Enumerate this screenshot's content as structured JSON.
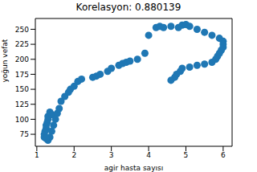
{
  "chart_data": {
    "type": "scatter",
    "title": "Korelasyon: 0.880139",
    "x_label": "agir hasta sayısı",
    "y_label": "yoğun vefat",
    "color": "#1f77b4",
    "marker": "circle",
    "grid": false,
    "xlim": [
      0.96,
      6.24
    ],
    "ylim": [
      55,
      268
    ],
    "xticks": [
      1,
      2,
      3,
      4,
      5,
      6
    ],
    "yticks": [
      75,
      100,
      125,
      150,
      175,
      200,
      225,
      250
    ],
    "x": [
      1.2,
      1.2,
      1.22,
      1.25,
      1.25,
      1.28,
      1.3,
      1.3,
      1.35,
      1.4,
      1.5,
      1.45,
      1.4,
      1.35,
      1.3,
      1.25,
      1.55,
      1.6,
      1.65,
      1.75,
      1.85,
      1.9,
      2.0,
      2.1,
      2.2,
      2.5,
      2.6,
      2.7,
      2.9,
      3.0,
      3.2,
      3.3,
      3.4,
      3.5,
      3.7,
      3.9,
      4.0,
      4.2,
      4.3,
      4.4,
      4.6,
      4.8,
      4.9,
      5.0,
      5.1,
      5.3,
      5.5,
      5.7,
      5.9,
      6.0,
      6.0,
      6.0,
      5.95,
      5.9,
      5.85,
      5.8,
      5.7,
      5.5,
      5.3,
      5.1,
      4.9,
      4.85,
      4.75,
      4.7,
      4.6
    ],
    "values": [
      70,
      75,
      80,
      85,
      90,
      95,
      100,
      105,
      112,
      108,
      100,
      90,
      80,
      70,
      65,
      68,
      110,
      118,
      130,
      138,
      145,
      150,
      155,
      163,
      167,
      170,
      172,
      175,
      180,
      185,
      190,
      193,
      195,
      197,
      200,
      210,
      240,
      253,
      255,
      253,
      255,
      253,
      257,
      258,
      255,
      250,
      245,
      240,
      235,
      230,
      225,
      220,
      215,
      210,
      205,
      200,
      195,
      192,
      190,
      187,
      185,
      180,
      175,
      170,
      165
    ]
  }
}
